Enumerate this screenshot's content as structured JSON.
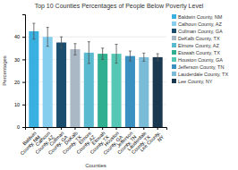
{
  "chart_data": {
    "type": "bar",
    "title": "Top 10 Counties Percentages of People Below Poverty Level",
    "xlabel": "Counties",
    "ylabel": "Percentages",
    "categories": [
      "Baldwin\nCounty, NM",
      "Calhoun\nCounty, AZ",
      "Cullman\nCounty, GA",
      "DeKalb\nCounty, TX",
      "Elmore\nCounty, AZ",
      "Etowah\nCounty, TX",
      "Houston\nCounty, GA",
      "Jefferson\nCounty, TN",
      "Lauderdale\nCounty, TX",
      "Lee County,\nNY"
    ],
    "values": [
      42.5,
      40.0,
      37.5,
      34.5,
      33.0,
      32.5,
      32.5,
      31.5,
      31.0,
      31.0
    ],
    "errors": [
      3.5,
      4.2,
      2.5,
      2.5,
      4.8,
      2.5,
      4.2,
      2.2,
      1.8,
      1.5
    ],
    "colors": [
      "#3ab0e0",
      "#85ceee",
      "#1a4d6e",
      "#aab8c5",
      "#5abbd0",
      "#30b090",
      "#55c8b5",
      "#3a90c0",
      "#7abcd8",
      "#1a3850"
    ],
    "legend_labels": [
      "Baldwin County, NM",
      "Calhoun County, AZ",
      "Cullman County, GA",
      "DeKalb County, TX",
      "Elmore County, AZ",
      "Etowah County, TX",
      "Houston County, GA",
      "Jefferson County, TN",
      "Lauderdale County, TX",
      "Lee County, NY"
    ],
    "ylim": [
      0,
      50
    ],
    "yticks": [
      0,
      10,
      20,
      30,
      40
    ],
    "grid": true,
    "legend": "right"
  }
}
